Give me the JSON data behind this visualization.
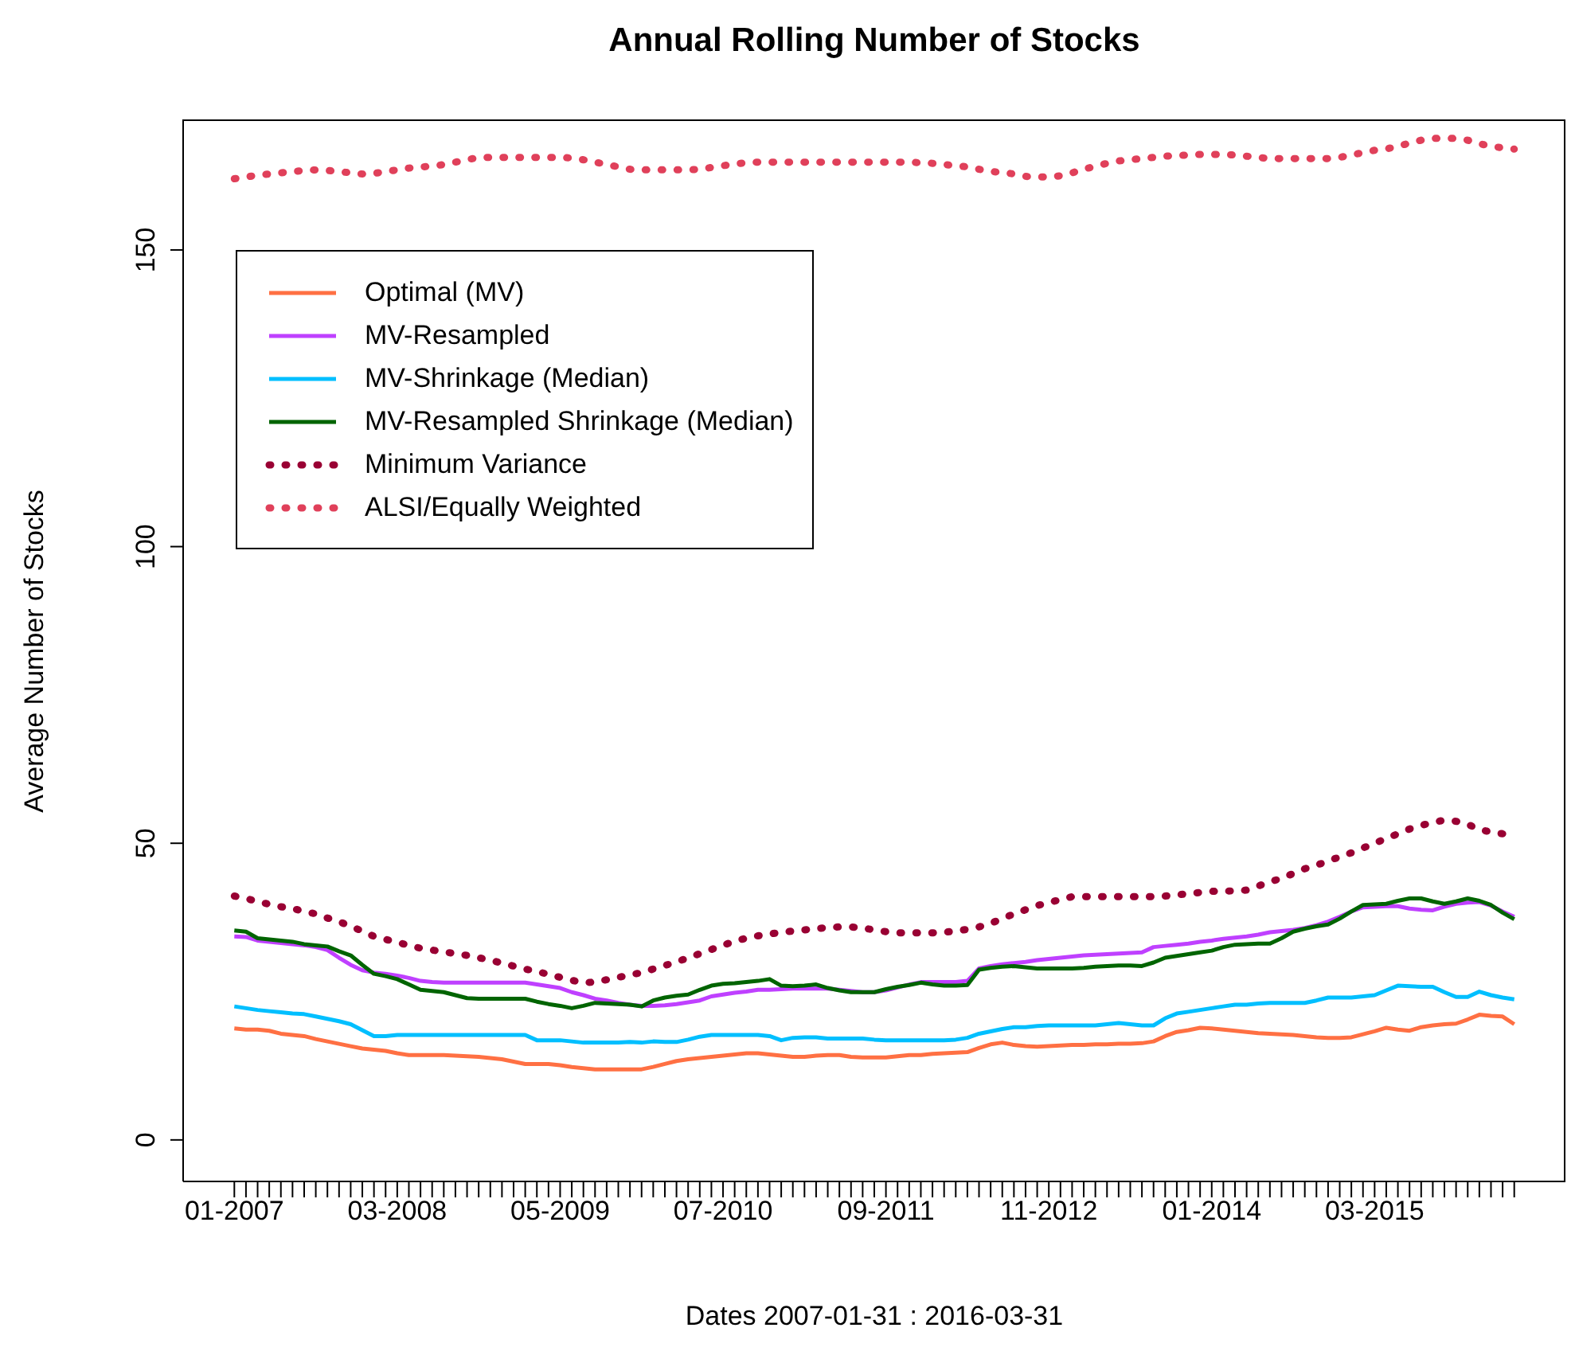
{
  "chart_data": {
    "type": "line",
    "title": "Annual Rolling Number of Stocks",
    "xlabel": "Dates  2007-01-31 : 2016-03-31",
    "ylabel": "Average Number of Stocks",
    "categories": [
      "01-2007",
      null,
      null,
      null,
      null,
      null,
      null,
      null,
      null,
      null,
      null,
      null,
      null,
      null,
      "03-2008",
      null,
      null,
      null,
      null,
      null,
      null,
      null,
      null,
      null,
      null,
      null,
      null,
      null,
      "05-2009",
      null,
      null,
      null,
      null,
      null,
      null,
      null,
      null,
      null,
      null,
      null,
      null,
      null,
      "07-2010",
      null,
      null,
      null,
      null,
      null,
      null,
      null,
      null,
      null,
      null,
      null,
      null,
      null,
      "09-2011",
      null,
      null,
      null,
      null,
      null,
      null,
      null,
      null,
      null,
      null,
      null,
      null,
      null,
      "11-2012",
      null,
      null,
      null,
      null,
      null,
      null,
      null,
      null,
      null,
      null,
      null,
      null,
      null,
      "01-2014",
      null,
      null,
      null,
      null,
      null,
      null,
      null,
      null,
      null,
      null,
      null,
      null,
      null,
      "03-2015",
      null,
      null,
      null,
      null,
      null,
      null,
      null,
      null,
      null,
      null,
      null,
      null
    ],
    "series": [
      {
        "name": "Optimal (MV)",
        "color": "#ff7043",
        "line_style": "solid",
        "values": [
          18.8,
          18.6,
          18.6,
          18.4,
          17.9,
          17.7,
          17.5,
          17.0,
          16.6,
          16.2,
          15.8,
          15.4,
          15.2,
          15.0,
          14.6,
          14.3,
          14.3,
          14.3,
          14.3,
          14.2,
          14.1,
          14.0,
          13.8,
          13.6,
          13.2,
          12.8,
          12.8,
          12.8,
          12.6,
          12.3,
          12.1,
          11.9,
          11.9,
          11.9,
          11.9,
          11.9,
          12.3,
          12.8,
          13.3,
          13.6,
          13.8,
          14.0,
          14.2,
          14.4,
          14.6,
          14.6,
          14.4,
          14.2,
          14.0,
          14.0,
          14.2,
          14.3,
          14.3,
          14.0,
          13.9,
          13.9,
          13.9,
          14.1,
          14.3,
          14.3,
          14.5,
          14.6,
          14.7,
          14.8,
          15.5,
          16.1,
          16.4,
          16.0,
          15.8,
          15.7,
          15.8,
          15.9,
          16.0,
          16.0,
          16.1,
          16.1,
          16.2,
          16.2,
          16.3,
          16.6,
          17.5,
          18.2,
          18.5,
          18.9,
          18.8,
          18.6,
          18.4,
          18.2,
          18.0,
          17.9,
          17.8,
          17.7,
          17.5,
          17.3,
          17.2,
          17.2,
          17.3,
          17.8,
          18.3,
          18.9,
          18.6,
          18.4,
          19.0,
          19.3,
          19.5,
          19.6,
          20.3,
          21.1,
          20.9,
          20.8,
          19.5
        ]
      },
      {
        "name": "MV-Resampled",
        "color": "#bf40ff",
        "line_style": "solid",
        "values": [
          34.3,
          34.2,
          33.6,
          33.4,
          33.2,
          33.0,
          32.8,
          32.5,
          32.0,
          30.7,
          29.5,
          28.6,
          28.2,
          28.0,
          27.7,
          27.3,
          26.8,
          26.6,
          26.5,
          26.5,
          26.5,
          26.5,
          26.5,
          26.5,
          26.5,
          26.5,
          26.2,
          25.9,
          25.6,
          24.9,
          24.4,
          23.8,
          23.5,
          23.1,
          22.8,
          22.6,
          22.6,
          22.7,
          22.9,
          23.2,
          23.5,
          24.2,
          24.5,
          24.8,
          25.0,
          25.3,
          25.3,
          25.4,
          25.5,
          25.5,
          25.5,
          25.5,
          25.3,
          25.1,
          24.9,
          24.9,
          25.2,
          25.7,
          26.2,
          26.6,
          26.6,
          26.6,
          26.6,
          26.8,
          28.9,
          29.3,
          29.6,
          29.8,
          30.0,
          30.3,
          30.5,
          30.7,
          30.9,
          31.1,
          31.2,
          31.3,
          31.4,
          31.5,
          31.6,
          32.5,
          32.7,
          32.9,
          33.1,
          33.4,
          33.6,
          33.9,
          34.1,
          34.3,
          34.6,
          35.0,
          35.2,
          35.4,
          35.7,
          36.2,
          36.8,
          37.6,
          38.5,
          39.2,
          39.3,
          39.4,
          39.4,
          39.0,
          38.8,
          38.7,
          39.3,
          39.8,
          40.0,
          40.1,
          39.5,
          38.5,
          37.6
        ]
      },
      {
        "name": "MV-Shrinkage (Median)",
        "color": "#00bfff",
        "line_style": "solid",
        "values": [
          22.5,
          22.2,
          21.9,
          21.7,
          21.5,
          21.3,
          21.2,
          20.8,
          20.4,
          20.0,
          19.5,
          18.5,
          17.5,
          17.5,
          17.7,
          17.7,
          17.7,
          17.7,
          17.7,
          17.7,
          17.7,
          17.7,
          17.7,
          17.7,
          17.7,
          17.7,
          16.8,
          16.8,
          16.8,
          16.6,
          16.4,
          16.4,
          16.4,
          16.4,
          16.5,
          16.4,
          16.6,
          16.5,
          16.5,
          16.9,
          17.4,
          17.7,
          17.7,
          17.7,
          17.7,
          17.7,
          17.5,
          16.8,
          17.2,
          17.3,
          17.3,
          17.1,
          17.1,
          17.1,
          17.1,
          16.9,
          16.8,
          16.8,
          16.8,
          16.8,
          16.8,
          16.8,
          16.9,
          17.2,
          17.9,
          18.3,
          18.7,
          19.0,
          19.0,
          19.2,
          19.3,
          19.3,
          19.3,
          19.3,
          19.3,
          19.5,
          19.7,
          19.5,
          19.3,
          19.3,
          20.5,
          21.3,
          21.6,
          21.9,
          22.2,
          22.5,
          22.8,
          22.8,
          23.0,
          23.1,
          23.1,
          23.1,
          23.1,
          23.5,
          24.0,
          24.0,
          24.0,
          24.2,
          24.4,
          25.2,
          26.0,
          25.9,
          25.8,
          25.8,
          24.9,
          24.1,
          24.1,
          25.0,
          24.4,
          24.0,
          23.7
        ]
      },
      {
        "name": "MV-Resampled Shrinkage (Median)",
        "color": "#006400",
        "line_style": "solid",
        "values": [
          35.3,
          35.1,
          34.0,
          33.8,
          33.6,
          33.4,
          33.0,
          32.8,
          32.6,
          31.8,
          31.1,
          29.5,
          28.0,
          27.6,
          27.1,
          26.2,
          25.3,
          25.1,
          24.9,
          24.4,
          23.9,
          23.8,
          23.8,
          23.8,
          23.8,
          23.8,
          23.3,
          22.9,
          22.6,
          22.2,
          22.6,
          23.1,
          23.0,
          22.9,
          22.8,
          22.5,
          23.5,
          24.0,
          24.3,
          24.5,
          25.3,
          26.0,
          26.3,
          26.4,
          26.6,
          26.8,
          27.1,
          26.0,
          25.9,
          26.0,
          26.2,
          25.6,
          25.2,
          24.9,
          24.9,
          24.9,
          25.4,
          25.8,
          26.1,
          26.5,
          26.2,
          26.0,
          26.0,
          26.1,
          28.7,
          29.0,
          29.2,
          29.3,
          29.1,
          28.9,
          28.9,
          28.9,
          28.9,
          29.0,
          29.2,
          29.3,
          29.4,
          29.4,
          29.3,
          29.9,
          30.7,
          31.0,
          31.3,
          31.6,
          31.9,
          32.5,
          32.9,
          33.0,
          33.1,
          33.1,
          34.0,
          35.1,
          35.6,
          36.0,
          36.3,
          37.3,
          38.5,
          39.6,
          39.7,
          39.8,
          40.3,
          40.7,
          40.7,
          40.2,
          39.8,
          40.2,
          40.7,
          40.3,
          39.6,
          38.3,
          37.2
        ]
      },
      {
        "name": "Minimum Variance",
        "color": "#990033",
        "line_style": "dotted",
        "values": [
          41.1,
          40.7,
          40.2,
          39.7,
          39.3,
          39.0,
          38.5,
          38.1,
          37.4,
          36.8,
          36.0,
          35.2,
          34.3,
          33.8,
          33.3,
          32.8,
          32.3,
          32.0,
          31.7,
          31.4,
          31.1,
          30.7,
          30.3,
          29.8,
          29.3,
          28.8,
          28.4,
          27.9,
          27.4,
          26.9,
          26.5,
          26.6,
          27.0,
          27.4,
          27.8,
          28.2,
          28.8,
          29.4,
          30.0,
          30.7,
          31.4,
          32.1,
          32.8,
          33.5,
          34.0,
          34.4,
          34.7,
          35.0,
          35.2,
          35.4,
          35.6,
          35.8,
          35.9,
          35.9,
          35.7,
          35.4,
          35.1,
          34.9,
          34.9,
          34.9,
          34.9,
          35.0,
          35.2,
          35.5,
          35.9,
          36.5,
          37.3,
          38.1,
          38.8,
          39.5,
          40.0,
          40.5,
          41.0,
          41.0,
          41.0,
          41.0,
          41.0,
          41.0,
          41.0,
          41.0,
          41.1,
          41.3,
          41.5,
          41.7,
          41.9,
          41.9,
          42.0,
          42.1,
          42.8,
          43.5,
          44.1,
          44.9,
          45.7,
          46.3,
          47.0,
          47.7,
          48.4,
          49.2,
          50.0,
          50.8,
          51.6,
          52.4,
          53.0,
          53.5,
          53.9,
          53.7,
          53.2,
          52.3,
          51.9,
          51.6,
          51.2
        ]
      },
      {
        "name": "ALSI/Equally Weighted",
        "color": "#e0405a",
        "line_style": "dotted",
        "values": [
          162.0,
          162.3,
          162.6,
          162.8,
          163.0,
          163.2,
          163.4,
          163.5,
          163.4,
          163.2,
          163.0,
          162.8,
          162.9,
          163.2,
          163.5,
          163.8,
          164.0,
          164.1,
          164.4,
          164.8,
          165.2,
          165.6,
          165.6,
          165.6,
          165.6,
          165.6,
          165.6,
          165.6,
          165.6,
          165.5,
          165.2,
          164.8,
          164.4,
          164.0,
          163.6,
          163.5,
          163.5,
          163.5,
          163.5,
          163.5,
          163.6,
          163.9,
          164.2,
          164.5,
          164.7,
          164.8,
          164.8,
          164.8,
          164.8,
          164.8,
          164.8,
          164.8,
          164.8,
          164.8,
          164.8,
          164.8,
          164.8,
          164.8,
          164.8,
          164.7,
          164.6,
          164.4,
          164.2,
          164.0,
          163.6,
          163.2,
          163.1,
          162.8,
          162.4,
          162.3,
          162.3,
          162.5,
          163.0,
          163.6,
          164.1,
          164.6,
          165.0,
          165.2,
          165.4,
          165.6,
          165.8,
          165.9,
          166.0,
          166.1,
          166.1,
          166.1,
          166.0,
          165.8,
          165.6,
          165.4,
          165.4,
          165.4,
          165.4,
          165.4,
          165.4,
          165.6,
          166.0,
          166.4,
          166.8,
          167.0,
          167.5,
          168.0,
          168.5,
          168.8,
          168.8,
          168.8,
          168.5,
          167.9,
          167.5,
          167.2,
          167.0
        ]
      }
    ],
    "ylim": [
      -7,
      172
    ],
    "yticks": [
      0,
      50,
      100,
      150
    ],
    "legend": "top left"
  }
}
